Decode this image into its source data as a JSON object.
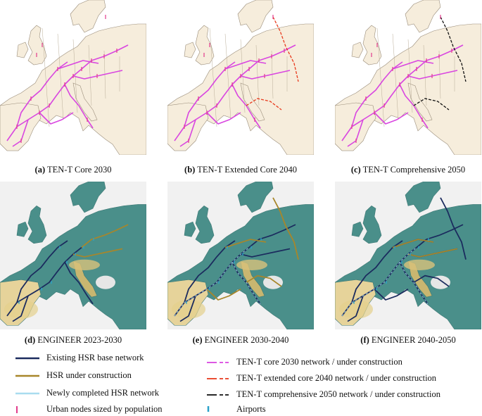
{
  "panels": [
    {
      "letter": "(a)",
      "title": "TEN-T Core 2030"
    },
    {
      "letter": "(b)",
      "title": "TEN-T Extended Core 2040"
    },
    {
      "letter": "(c)",
      "title": "TEN-T Comprehensive 2050"
    },
    {
      "letter": "(d)",
      "title": "ENGINEER 2023-2030"
    },
    {
      "letter": "(e)",
      "title": "ENGINEER 2030-2040"
    },
    {
      "letter": "(f)",
      "title": "ENGINEER 2040-2050"
    }
  ],
  "legend": {
    "existing": "Existing HSR base network",
    "under_construction": "HSR under construction",
    "newly_completed": "Newly completed HSR network",
    "urban_nodes": "Urban nodes sized by population",
    "core2030": "TEN-T core 2030 network / under construction",
    "extended2040": "TEN-T extended core 2040 network / under construction",
    "comprehensive2050": "TEN-T comprehensive 2050 network / under construction",
    "airports": "Airports"
  },
  "colors": {
    "existing": "#1b2b5e",
    "under_construction": "#a8862a",
    "newly_completed": "#a9dcef",
    "core2030": "#d946e0",
    "extended2040": "#e8391c",
    "comprehensive2050": "#111111",
    "urban_nodes": "#e23c8c",
    "airports": "#2aa1c9",
    "sea_top": "#ffffff",
    "land_top": "#f6eddc",
    "sea_bottom": "#f1f1f1",
    "land_bottom": "#4a8f8a"
  }
}
